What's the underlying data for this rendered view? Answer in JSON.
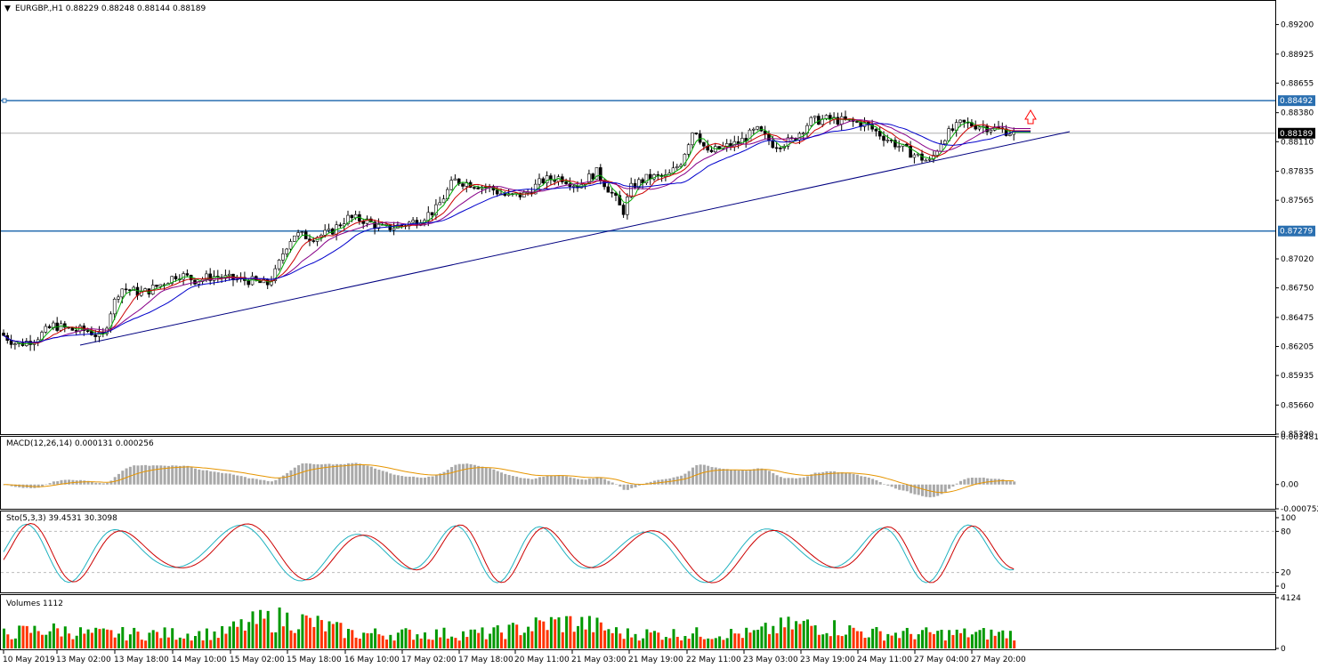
{
  "chart_title": "EURGBP.,H1  0.88229 0.88248 0.88144 0.88189",
  "main": {
    "y_ticks": [
      "0.89200",
      "0.88925",
      "0.88655",
      "0.88380",
      "0.88110",
      "0.87835",
      "0.87565",
      "0.87020",
      "0.86750",
      "0.86475",
      "0.86205",
      "0.85935",
      "0.85660",
      "0.85390"
    ],
    "y_min": 0.8539,
    "y_max": 0.8942,
    "resistance": 0.88492,
    "support": 0.87279,
    "current_price": 0.88189,
    "resistance_label": "0.88492",
    "support_label": "0.87279",
    "current_label": "0.88189"
  },
  "macd": {
    "label": "MACD(12,26,14) 0.000131 0.000256",
    "ticks": [
      "0.001481",
      "0.00",
      "-0.000752"
    ],
    "min": -0.000752,
    "max": 0.001481
  },
  "stoch": {
    "label": "Sto(5,3,3) 39.4531 30.3098",
    "ticks": [
      "100",
      "80",
      "20",
      "0"
    ]
  },
  "volumes": {
    "label": "Volumes 1112",
    "ticks": [
      "4124",
      "0"
    ],
    "max": 4124
  },
  "x_ticks": [
    "10 May 2019",
    "13 May 02:00",
    "13 May 18:00",
    "14 May 10:00",
    "15 May 02:00",
    "15 May 18:00",
    "16 May 10:00",
    "17 May 02:00",
    "17 May 18:00",
    "20 May 11:00",
    "21 May 03:00",
    "21 May 19:00",
    "22 May 11:00",
    "23 May 03:00",
    "23 May 19:00",
    "24 May 11:00",
    "27 May 04:00",
    "27 May 20:00"
  ],
  "colors": {
    "up_bar": "#009900",
    "down_bar": "#ff3300",
    "hline": "#2a6fb0",
    "trend": "#000080",
    "arrow": "#ff0000"
  },
  "chart_data": {
    "type": "candlestick",
    "symbol": "EURGBP.",
    "timeframe": "H1",
    "title": "EURGBP.,H1  0.88229 0.88248 0.88144 0.88189",
    "y_range": [
      0.8539,
      0.8942
    ],
    "close_path": [
      [
        0,
        0.8633
      ],
      [
        20,
        0.8622
      ],
      [
        40,
        0.8628
      ],
      [
        60,
        0.864
      ],
      [
        80,
        0.8636
      ],
      [
        100,
        0.8635
      ],
      [
        115,
        0.8628
      ],
      [
        125,
        0.8655
      ],
      [
        135,
        0.8675
      ],
      [
        160,
        0.867
      ],
      [
        180,
        0.8678
      ],
      [
        200,
        0.8688
      ],
      [
        220,
        0.8682
      ],
      [
        240,
        0.8686
      ],
      [
        260,
        0.8683
      ],
      [
        280,
        0.8682
      ],
      [
        300,
        0.8678
      ],
      [
        310,
        0.869
      ],
      [
        320,
        0.8712
      ],
      [
        330,
        0.8725
      ],
      [
        350,
        0.8722
      ],
      [
        370,
        0.8726
      ],
      [
        390,
        0.874
      ],
      [
        410,
        0.8738
      ],
      [
        430,
        0.873
      ],
      [
        450,
        0.8733
      ],
      [
        470,
        0.8738
      ],
      [
        490,
        0.8748
      ],
      [
        510,
        0.8775
      ],
      [
        530,
        0.8772
      ],
      [
        550,
        0.8768
      ],
      [
        570,
        0.876
      ],
      [
        590,
        0.8762
      ],
      [
        610,
        0.8775
      ],
      [
        630,
        0.8778
      ],
      [
        650,
        0.877
      ],
      [
        670,
        0.8783
      ],
      [
        690,
        0.876
      ],
      [
        700,
        0.8745
      ],
      [
        710,
        0.877
      ],
      [
        730,
        0.8778
      ],
      [
        750,
        0.8778
      ],
      [
        765,
        0.8792
      ],
      [
        780,
        0.8825
      ],
      [
        795,
        0.88
      ],
      [
        810,
        0.8805
      ],
      [
        830,
        0.881
      ],
      [
        850,
        0.8822
      ],
      [
        870,
        0.8808
      ],
      [
        890,
        0.8812
      ],
      [
        910,
        0.883
      ],
      [
        930,
        0.8832
      ],
      [
        950,
        0.883
      ],
      [
        970,
        0.8828
      ],
      [
        985,
        0.882
      ],
      [
        1000,
        0.8812
      ],
      [
        1020,
        0.8802
      ],
      [
        1045,
        0.8792
      ],
      [
        1060,
        0.8815
      ],
      [
        1080,
        0.8828
      ],
      [
        1100,
        0.8826
      ],
      [
        1120,
        0.8823
      ],
      [
        1140,
        0.8819
      ]
    ]
  }
}
